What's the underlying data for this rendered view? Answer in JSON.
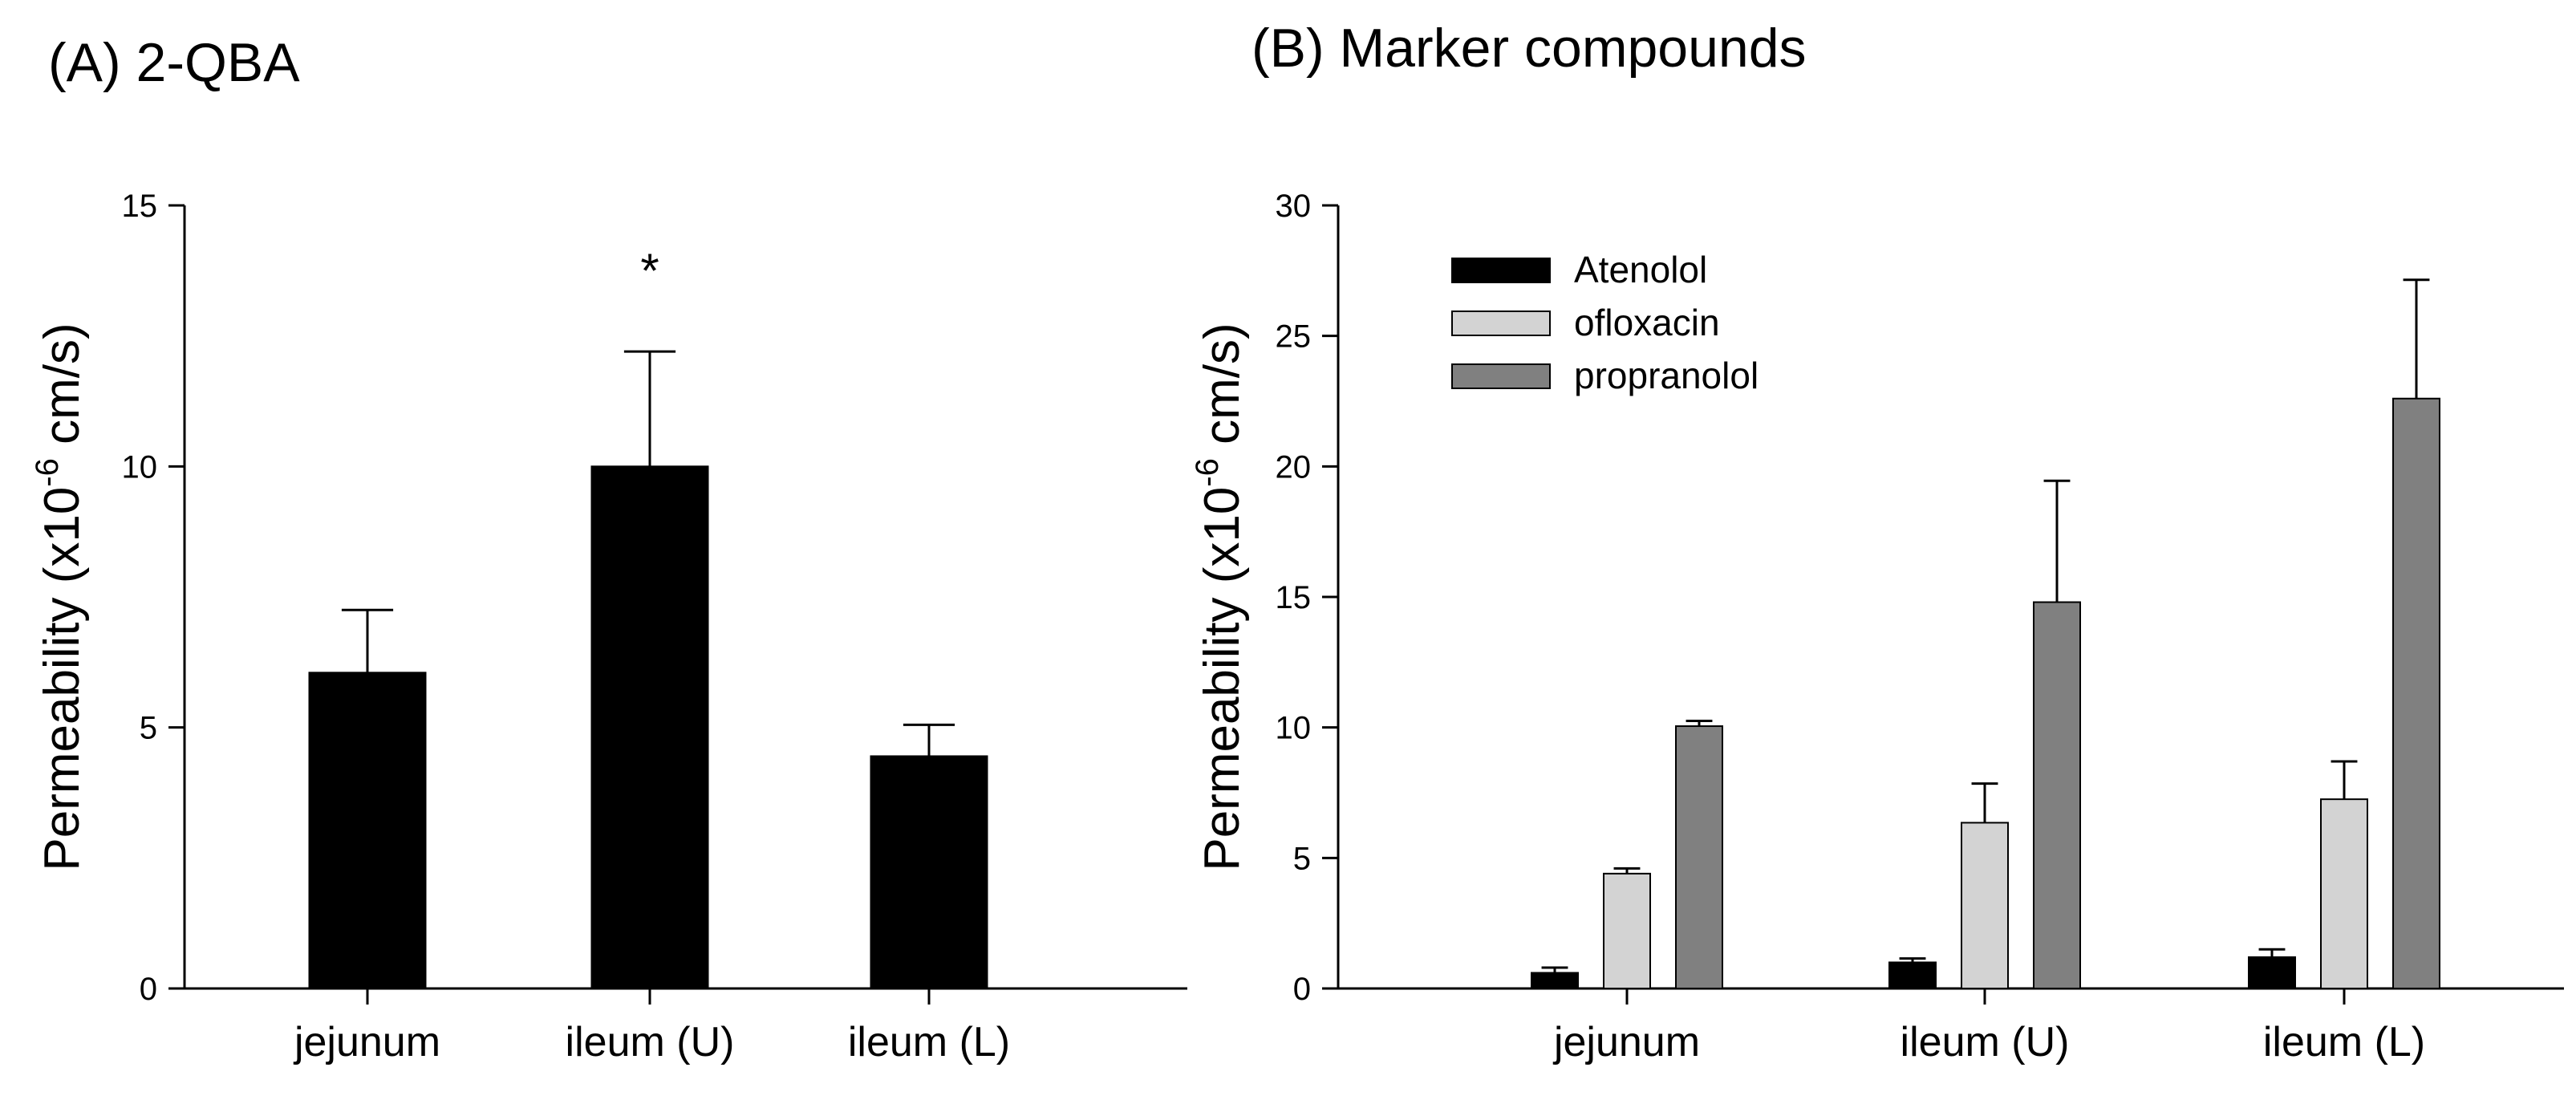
{
  "chart_data": [
    {
      "id": "A",
      "type": "bar",
      "title": "(A) 2-QBA",
      "xlabel": "",
      "ylabel": "Permeability (x10-6 cm/s)",
      "ylabel_parts": {
        "main": "Permeability (x10",
        "sup": "-6",
        "unit": " cm/s)"
      },
      "categories": [
        "jejunum",
        "ileum (U)",
        "ileum (L)"
      ],
      "series": [
        {
          "name": "2-QBA",
          "color": "#000000",
          "values": [
            6.05,
            10.0,
            4.45
          ],
          "errors": [
            1.2,
            2.2,
            0.6
          ]
        }
      ],
      "annotations": [
        {
          "category": "ileum (U)",
          "text": "*"
        }
      ],
      "ylim": [
        0,
        15
      ],
      "yticks": [
        0,
        5,
        10,
        15
      ],
      "ytick_labels": [
        "0",
        "5",
        "10",
        "15"
      ],
      "grid": false,
      "legend": "none"
    },
    {
      "id": "B",
      "type": "bar",
      "title": "(B) Marker compounds",
      "xlabel": "",
      "ylabel": "Permeability (x10-6 cm/s)",
      "ylabel_parts": {
        "main": "Permeability (x10",
        "sup": "-6",
        "unit": " cm/s)"
      },
      "categories": [
        "jejunum",
        "ileum (U)",
        "ileum (L)"
      ],
      "series": [
        {
          "name": "Atenolol",
          "color": "#000000",
          "values": [
            0.6,
            1.0,
            1.2
          ],
          "errors": [
            0.2,
            0.15,
            0.3
          ]
        },
        {
          "name": "ofloxacin",
          "color": "#d3d3d3",
          "values": [
            4.4,
            6.35,
            7.25
          ],
          "errors": [
            0.2,
            1.5,
            1.45
          ]
        },
        {
          "name": "propranolol",
          "color": "#808080",
          "values": [
            10.05,
            14.8,
            22.6
          ],
          "errors": [
            0.2,
            4.65,
            4.55
          ]
        }
      ],
      "ylim": [
        0,
        30
      ],
      "yticks": [
        0,
        5,
        10,
        15,
        20,
        25,
        30
      ],
      "ytick_labels": [
        "0",
        "5",
        "10",
        "15",
        "20",
        "25",
        "30"
      ],
      "grid": false,
      "legend": "top-left"
    }
  ]
}
